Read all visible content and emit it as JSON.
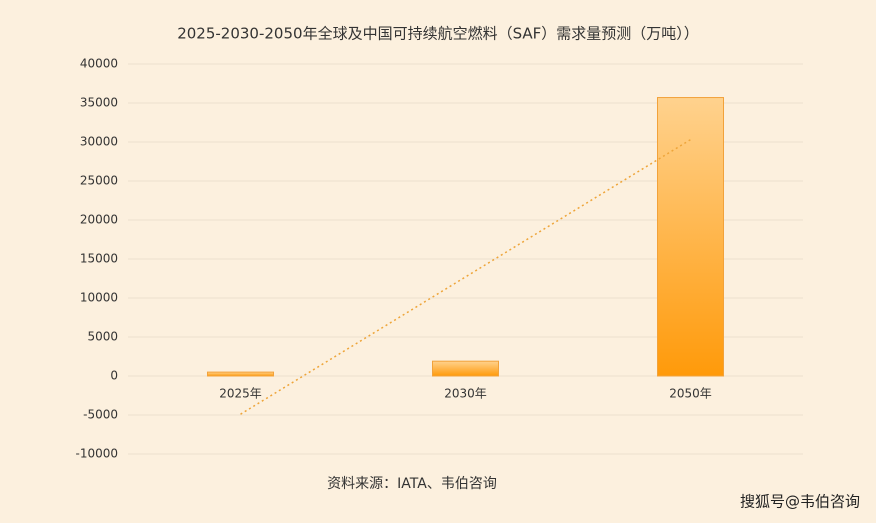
{
  "chart_data": {
    "type": "bar",
    "title": "2025-2030-2050年全球及中国可持续航空燃料（SAF）需求量预测（万吨））",
    "categories": [
      "2025年",
      "2030年",
      "2050年"
    ],
    "values": [
      500,
      1900,
      35700
    ],
    "trendline": [
      -4900,
      30300
    ],
    "ylim": [
      -10000,
      40000
    ],
    "yticks": [
      -10000,
      -5000,
      0,
      5000,
      10000,
      15000,
      20000,
      25000,
      30000,
      35000,
      40000
    ],
    "grid": true,
    "source": "资料来源：IATA、韦伯咨询",
    "watermark": "搜狐号@韦伯咨询"
  }
}
